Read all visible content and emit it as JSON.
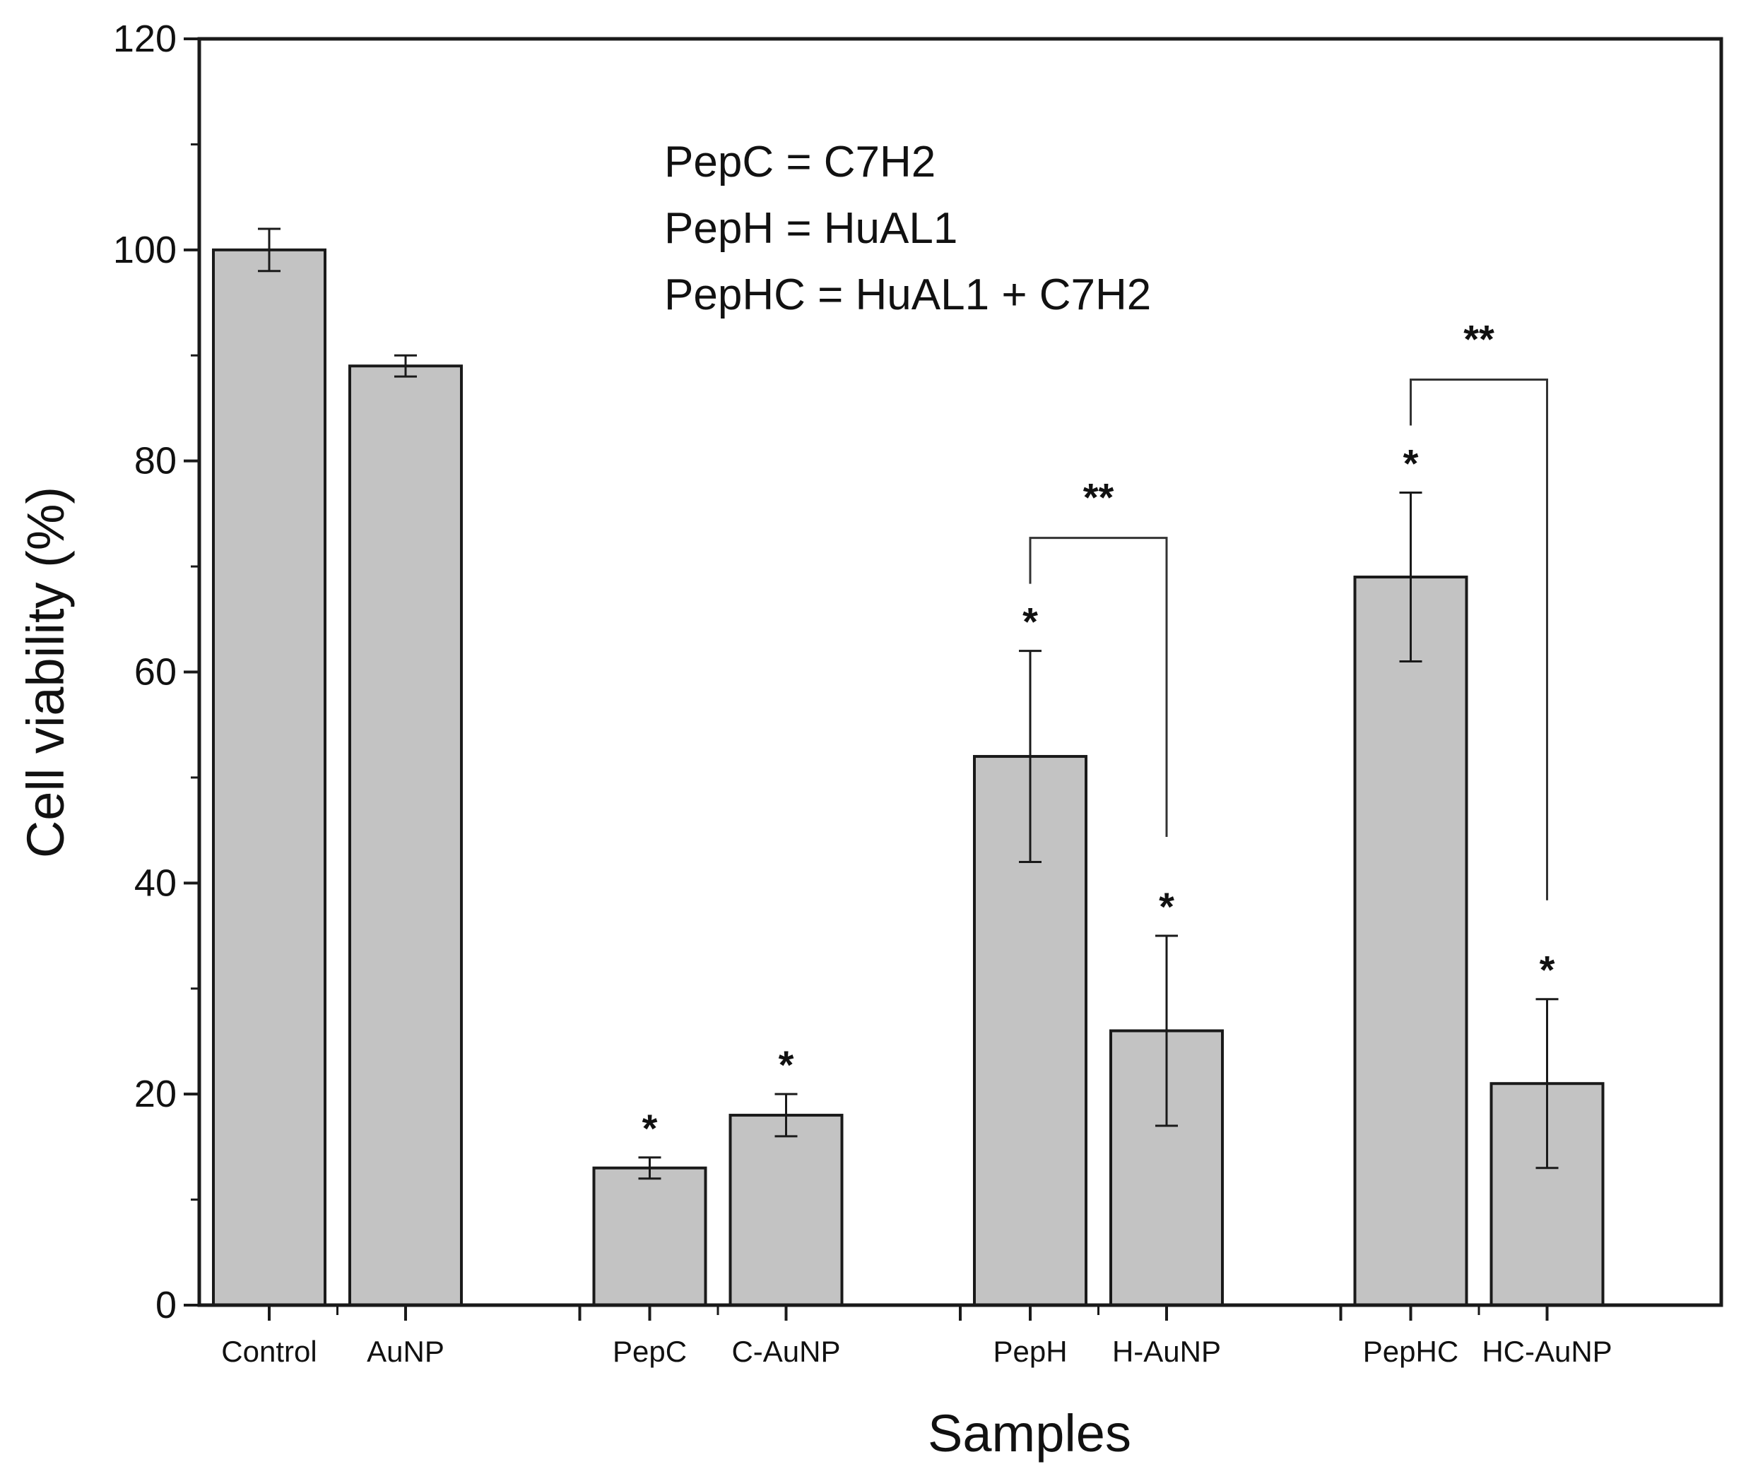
{
  "chart_data": {
    "type": "bar",
    "title": "",
    "xlabel": "Samples",
    "ylabel": "Cell viability (%)",
    "ylim": [
      0,
      120
    ],
    "yticks": [
      0,
      20,
      40,
      60,
      80,
      100,
      120
    ],
    "grid": false,
    "categories": [
      "Control",
      "AuNP",
      "PepC",
      "C-AuNP",
      "PepH",
      "H-AuNP",
      "PepHC",
      "HC-AuNP"
    ],
    "groups": [
      [
        0,
        1
      ],
      [
        2,
        3
      ],
      [
        4,
        5
      ],
      [
        6,
        7
      ]
    ],
    "values": [
      100,
      89,
      13,
      18,
      52,
      26,
      69,
      21
    ],
    "errors": [
      2,
      1,
      1,
      2,
      10,
      9,
      8,
      8
    ],
    "significance": [
      "",
      "",
      "*",
      "*",
      "*",
      "*",
      "*",
      "*"
    ],
    "brackets": [
      {
        "from": 4,
        "to": 5,
        "label": "**"
      },
      {
        "from": 6,
        "to": 7,
        "label": "**"
      }
    ],
    "annotations": [
      "PepC = C7H2",
      "PepH = HuAL1",
      "PepHC = HuAL1 + C7H2"
    ],
    "colors": {
      "bar_fill": "#c3c3c3",
      "bar_stroke": "#1a1a1a",
      "axis": "#1a1a1a"
    }
  }
}
